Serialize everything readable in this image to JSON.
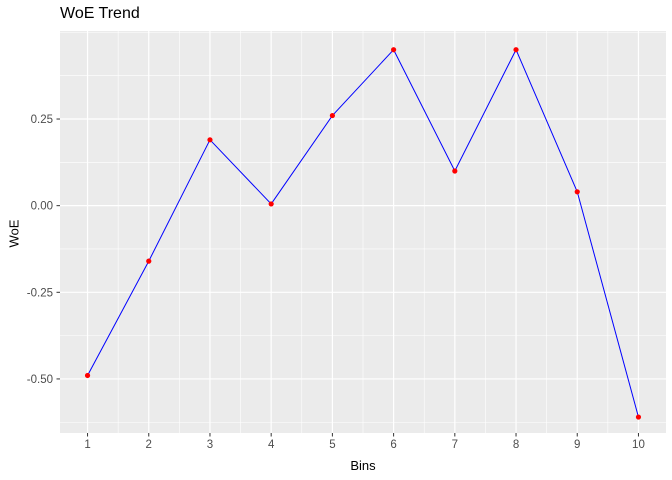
{
  "chart_data": {
    "type": "line",
    "title": "WoE Trend",
    "xlabel": "Bins",
    "ylabel": "WoE",
    "x": [
      1,
      2,
      3,
      4,
      5,
      6,
      7,
      8,
      9,
      10
    ],
    "values": [
      -0.49,
      -0.16,
      0.19,
      0.005,
      0.26,
      0.45,
      0.1,
      0.45,
      0.04,
      -0.61
    ],
    "x_tick_labels": [
      "1",
      "2",
      "3",
      "4",
      "5",
      "6",
      "7",
      "8",
      "9",
      "10"
    ],
    "y_ticks": [
      {
        "value": 0.25,
        "label": "0.25"
      },
      {
        "value": 0.0,
        "label": "0.00"
      },
      {
        "value": -0.25,
        "label": "-0.25"
      },
      {
        "value": -0.5,
        "label": "-0.50"
      }
    ],
    "xlim": [
      0.55,
      10.45
    ],
    "ylim": [
      -0.656,
      0.504
    ],
    "x_minor": [
      1.5,
      2.5,
      3.5,
      4.5,
      5.5,
      6.5,
      7.5,
      8.5,
      9.5
    ],
    "y_minor": [
      0.5,
      0.375,
      0.125,
      -0.125,
      -0.375,
      -0.625
    ],
    "grid": true,
    "legend": "none",
    "colors": {
      "line": "#0000FF",
      "point": "#FF0000",
      "panel": "#EBEBEB",
      "grid": "#FFFFFF",
      "tick_text": "#4D4D4D",
      "tick_mark": "#333333",
      "title_text": "#000000"
    }
  }
}
